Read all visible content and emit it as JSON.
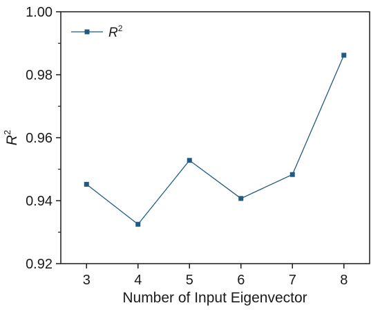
{
  "chart_data": {
    "type": "line",
    "title": "",
    "x": [
      3,
      4,
      5,
      6,
      7,
      8
    ],
    "series": [
      {
        "name": "R2",
        "values": [
          0.9452,
          0.9325,
          0.9528,
          0.9407,
          0.9483,
          0.9862
        ]
      }
    ],
    "xlabel": "Number of Input Eigenvector",
    "ylabel": "R2",
    "xlim": [
      2.5,
      8.5
    ],
    "ylim": [
      0.92,
      1.0
    ],
    "xticks": [
      "3",
      "4",
      "5",
      "6",
      "7",
      "8"
    ],
    "yticks": [
      "0.92",
      "0.94",
      "0.96",
      "0.98",
      "1.00"
    ],
    "grid": false,
    "legend": {
      "position": "top-left",
      "label_base": "R",
      "label_sup": "2"
    },
    "ylabel_base": "R",
    "ylabel_sup": "2",
    "color": "#1f5a82"
  }
}
